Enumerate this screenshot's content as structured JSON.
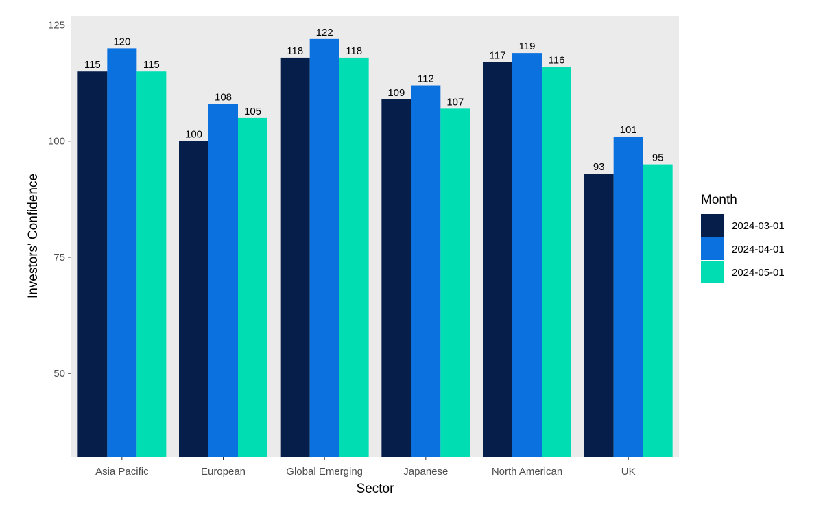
{
  "chart_data": {
    "type": "bar",
    "title": "",
    "xlabel": "Sector",
    "ylabel": "Investors' Confidence",
    "categories": [
      "Asia Pacific",
      "European",
      "Global Emerging",
      "Japanese",
      "North American",
      "UK"
    ],
    "series": [
      {
        "name": "2024-03-01",
        "color": "#061F4A",
        "values": [
          115,
          100,
          118,
          109,
          117,
          93
        ]
      },
      {
        "name": "2024-04-01",
        "color": "#0A71DF",
        "values": [
          120,
          108,
          122,
          112,
          119,
          101
        ]
      },
      {
        "name": "2024-05-01",
        "color": "#00DDB3",
        "values": [
          115,
          105,
          118,
          107,
          116,
          95
        ]
      }
    ],
    "ylim": [
      32,
      127
    ],
    "yticks": [
      50,
      75,
      100,
      125
    ],
    "grid": false,
    "panel_background": "#EBEBEB",
    "legend": {
      "title": "Month",
      "position": "right"
    }
  }
}
